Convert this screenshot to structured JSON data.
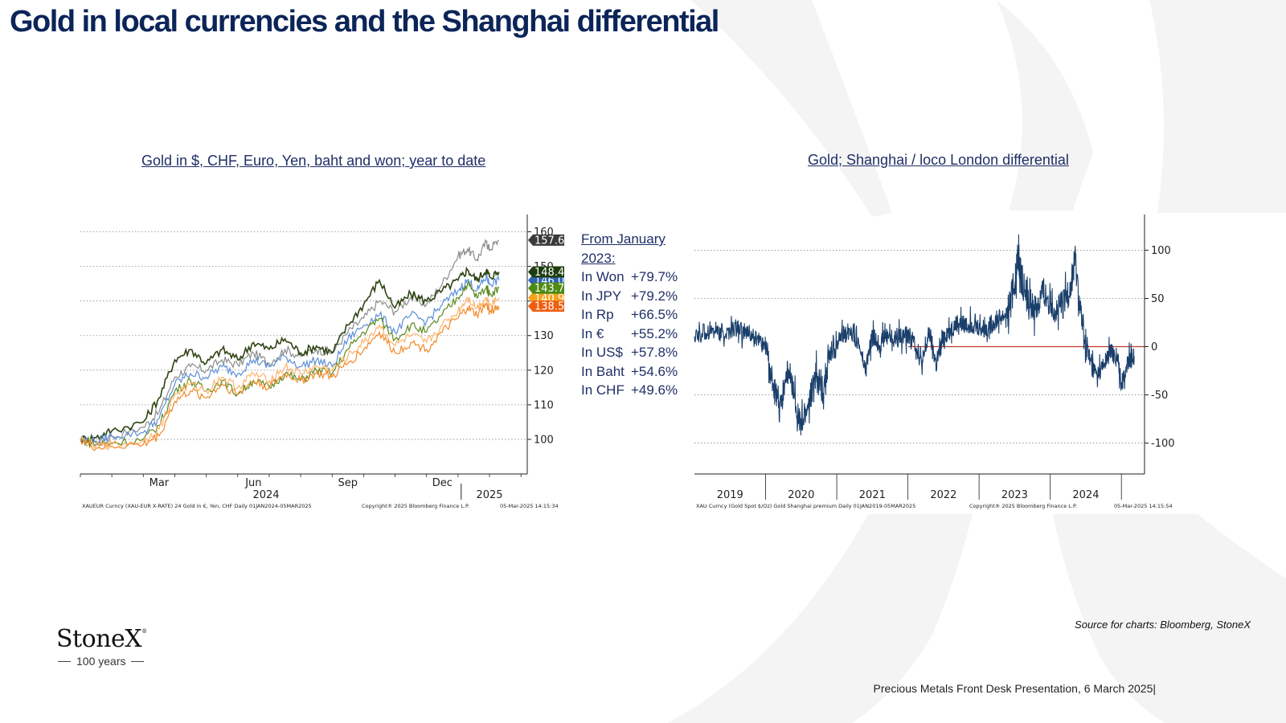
{
  "page": {
    "title": "Gold in local currencies and the Shanghai differential",
    "source": "Source for charts: Bloomberg, StoneX",
    "footer": "Precious Metals Front Desk Presentation, 6 March 2025|",
    "logo": {
      "name": "StoneX",
      "mark": "®",
      "tagline": "100 years"
    },
    "colors": {
      "navy": "#0b2559",
      "series_blue": "#1a3f6b"
    }
  },
  "performance": {
    "heading": "From January 2023:",
    "rows": [
      {
        "label": "In Won",
        "value": "+79.7%"
      },
      {
        "label": "In JPY",
        "value": "+79.2%"
      },
      {
        "label": "In Rp",
        "value": "+66.5%"
      },
      {
        "label": "In €",
        "value": "+55.2%"
      },
      {
        "label": "In US$",
        "value": "+57.8%"
      },
      {
        "label": "In Baht",
        "value": "+54.6%"
      },
      {
        "label": "In CHF",
        "value": "+49.6%"
      }
    ]
  },
  "chart_data": [
    {
      "type": "line",
      "title": "Gold in $, CHF, Euro, Yen, baht and won; year to date",
      "x_ticks": [
        "Mar",
        "Jun",
        "Sep",
        "Dec"
      ],
      "x_years": [
        "2024",
        "2025"
      ],
      "ylim": [
        90,
        165
      ],
      "y_ticks": [
        100,
        110,
        120,
        130,
        140,
        150,
        160
      ],
      "grid": true,
      "footnote_left": "XAUEUR Curncy (XAU-EUR X-RATE) 24 Gold in €, Yen, CHF  Daily 01JAN2024-05MAR2025",
      "footnote_mid": "Copyright® 2025 Bloomberg Finance L.P.",
      "footnote_right": "05-Mar-2025 14:15:34",
      "series": [
        {
          "color": "#8c8c8c",
          "last_label": "157.6",
          "last_value": 157.6,
          "label_color": "#3a3a3a",
          "points": [
            [
              0,
              100
            ],
            [
              0.5,
              99
            ],
            [
              1,
              100.8
            ],
            [
              2,
              103.5
            ],
            [
              2.5,
              108
            ],
            [
              3,
              118
            ],
            [
              3.5,
              121
            ],
            [
              4,
              120
            ],
            [
              4.5,
              123
            ],
            [
              5,
              121.5
            ],
            [
              5.5,
              125
            ],
            [
              6,
              122
            ],
            [
              6.5,
              126
            ],
            [
              7,
              124
            ],
            [
              7.5,
              126
            ],
            [
              8,
              125
            ],
            [
              8.5,
              131
            ],
            [
              9,
              135
            ],
            [
              9.5,
              140
            ],
            [
              10,
              137
            ],
            [
              10.5,
              141
            ],
            [
              11,
              139
            ],
            [
              11.5,
              145
            ],
            [
              12,
              153
            ],
            [
              12.3,
              155
            ],
            [
              12.6,
              152
            ],
            [
              12.9,
              157
            ],
            [
              13.0,
              155
            ],
            [
              13.3,
              157.6
            ]
          ]
        },
        {
          "color": "#2e4413",
          "last_label": "148.4",
          "last_value": 148.4,
          "label_color": "#1f3d10",
          "points": [
            [
              0,
              100
            ],
            [
              0.5,
              100.5
            ],
            [
              1,
              102.5
            ],
            [
              2,
              105
            ],
            [
              2.5,
              112
            ],
            [
              3,
              123
            ],
            [
              3.5,
              126
            ],
            [
              4,
              122
            ],
            [
              4.5,
              126
            ],
            [
              5,
              123
            ],
            [
              5.5,
              128
            ],
            [
              6,
              126
            ],
            [
              6.5,
              129
            ],
            [
              7,
              125
            ],
            [
              7.5,
              127
            ],
            [
              8,
              125
            ],
            [
              8.5,
              133
            ],
            [
              9,
              139
            ],
            [
              9.5,
              146
            ],
            [
              10,
              138
            ],
            [
              10.5,
              142
            ],
            [
              11,
              140
            ],
            [
              11.5,
              143
            ],
            [
              12,
              146
            ],
            [
              12.3,
              149
            ],
            [
              12.6,
              146
            ],
            [
              12.9,
              149
            ],
            [
              13.0,
              147
            ],
            [
              13.3,
              148.4
            ]
          ]
        },
        {
          "color": "#5b8fd6",
          "last_label": "146.0",
          "last_value": 146.0,
          "label_color": "#2f63b6",
          "points": [
            [
              0,
              100
            ],
            [
              0.5,
              99.5
            ],
            [
              1,
              101
            ],
            [
              2,
              102
            ],
            [
              2.5,
              106
            ],
            [
              3,
              116
            ],
            [
              3.5,
              119
            ],
            [
              4,
              118
            ],
            [
              4.5,
              121
            ],
            [
              5,
              119
            ],
            [
              5.5,
              123
            ],
            [
              6,
              121
            ],
            [
              6.5,
              124
            ],
            [
              7,
              121
            ],
            [
              7.5,
              123
            ],
            [
              8,
              121
            ],
            [
              8.5,
              129
            ],
            [
              9,
              133
            ],
            [
              9.5,
              136
            ],
            [
              10,
              131
            ],
            [
              10.5,
              136
            ],
            [
              11,
              134
            ],
            [
              11.5,
              139
            ],
            [
              12,
              143
            ],
            [
              12.3,
              146
            ],
            [
              12.6,
              143
            ],
            [
              12.9,
              147
            ],
            [
              13.0,
              145
            ],
            [
              13.3,
              146.0
            ]
          ]
        },
        {
          "color": "#5a8a1e",
          "last_label": "143.7",
          "last_value": 143.7,
          "label_color": "#4e8a14",
          "points": [
            [
              0,
              100
            ],
            [
              0.5,
              98.5
            ],
            [
              1,
              99
            ],
            [
              2,
              100
            ],
            [
              2.5,
              104
            ],
            [
              3,
              114
            ],
            [
              3.5,
              117
            ],
            [
              4,
              114
            ],
            [
              4.5,
              117
            ],
            [
              5,
              113
            ],
            [
              5.5,
              117
            ],
            [
              6,
              115
            ],
            [
              6.5,
              119
            ],
            [
              7,
              117
            ],
            [
              7.5,
              120
            ],
            [
              8,
              119
            ],
            [
              8.5,
              126
            ],
            [
              9,
              131
            ],
            [
              9.5,
              135
            ],
            [
              10,
              129
            ],
            [
              10.5,
              133
            ],
            [
              11,
              131
            ],
            [
              11.5,
              136
            ],
            [
              12,
              141
            ],
            [
              12.3,
              145
            ],
            [
              12.6,
              141
            ],
            [
              12.9,
              144
            ],
            [
              13.0,
              142
            ],
            [
              13.3,
              143.7
            ]
          ]
        },
        {
          "color": "#ffb36a",
          "last_label": "140.9",
          "last_value": 140.9,
          "label_color": "#f6a21b",
          "points": [
            [
              0,
              100
            ],
            [
              0.5,
              98
            ],
            [
              1,
              98.5
            ],
            [
              2,
              99.5
            ],
            [
              2.5,
              103
            ],
            [
              3,
              113
            ],
            [
              3.5,
              116
            ],
            [
              4,
              114
            ],
            [
              4.5,
              118
            ],
            [
              5,
              115
            ],
            [
              5.5,
              119
            ],
            [
              6,
              117
            ],
            [
              6.5,
              121
            ],
            [
              7,
              119
            ],
            [
              7.5,
              121
            ],
            [
              8,
              120
            ],
            [
              8.5,
              124
            ],
            [
              9,
              128
            ],
            [
              9.5,
              133
            ],
            [
              10,
              127
            ],
            [
              10.5,
              130
            ],
            [
              11,
              128
            ],
            [
              11.5,
              133
            ],
            [
              12,
              137
            ],
            [
              12.3,
              141
            ],
            [
              12.6,
              138
            ],
            [
              12.9,
              141
            ],
            [
              13.0,
              139
            ],
            [
              13.3,
              140.9
            ]
          ]
        },
        {
          "color": "#f28a2a",
          "last_label": "138.5",
          "last_value": 138.5,
          "label_color": "#ef5f10",
          "points": [
            [
              0,
              100
            ],
            [
              0.5,
              97.5
            ],
            [
              1,
              98
            ],
            [
              2,
              98.5
            ],
            [
              2.5,
              101
            ],
            [
              3,
              111
            ],
            [
              3.5,
              114
            ],
            [
              4,
              112
            ],
            [
              4.5,
              116
            ],
            [
              5,
              113
            ],
            [
              5.5,
              117
            ],
            [
              6,
              115
            ],
            [
              6.5,
              119
            ],
            [
              7,
              117
            ],
            [
              7.5,
              119
            ],
            [
              8,
              118
            ],
            [
              8.5,
              122
            ],
            [
              9,
              126
            ],
            [
              9.5,
              131
            ],
            [
              10,
              125
            ],
            [
              10.5,
              128
            ],
            [
              11,
              126
            ],
            [
              11.5,
              131
            ],
            [
              12,
              135
            ],
            [
              12.3,
              138
            ],
            [
              12.6,
              136
            ],
            [
              12.9,
              139
            ],
            [
              13.0,
              137
            ],
            [
              13.3,
              138.5
            ]
          ]
        }
      ]
    },
    {
      "type": "line",
      "title": "Gold; Shanghai / loco London differential",
      "x_years": [
        "2019",
        "2020",
        "2021",
        "2022",
        "2023",
        "2024"
      ],
      "ylim": [
        -132,
        137
      ],
      "y_ticks": [
        100,
        50,
        0,
        -50,
        -100
      ],
      "grid": true,
      "zero_line_color": "#c0392b",
      "footnote_left": "XAU Curncy (Gold Spot  $/Oz) Gold Shanghai premium  Daily 01JAN2019-05MAR2025",
      "footnote_mid": "Copyright® 2025 Bloomberg Finance L.P.",
      "footnote_right": "05-Mar-2025 14:15:54",
      "series": [
        {
          "color": "#1a3f6b",
          "points": [
            [
              2019.0,
              10
            ],
            [
              2019.15,
              15
            ],
            [
              2019.3,
              18
            ],
            [
              2019.45,
              12
            ],
            [
              2019.6,
              20
            ],
            [
              2019.75,
              12
            ],
            [
              2019.9,
              8
            ],
            [
              2020.0,
              0
            ],
            [
              2020.1,
              -40
            ],
            [
              2020.2,
              -65
            ],
            [
              2020.3,
              -25
            ],
            [
              2020.4,
              -50
            ],
            [
              2020.5,
              -85
            ],
            [
              2020.6,
              -60
            ],
            [
              2020.7,
              -30
            ],
            [
              2020.8,
              -45
            ],
            [
              2020.9,
              -10
            ],
            [
              2021.0,
              5
            ],
            [
              2021.1,
              12
            ],
            [
              2021.2,
              18
            ],
            [
              2021.3,
              5
            ],
            [
              2021.4,
              -25
            ],
            [
              2021.5,
              10
            ],
            [
              2021.6,
              2
            ],
            [
              2021.7,
              12
            ],
            [
              2021.8,
              8
            ],
            [
              2021.9,
              10
            ],
            [
              2022.0,
              12
            ],
            [
              2022.1,
              5
            ],
            [
              2022.2,
              -20
            ],
            [
              2022.3,
              15
            ],
            [
              2022.4,
              -20
            ],
            [
              2022.5,
              10
            ],
            [
              2022.6,
              18
            ],
            [
              2022.7,
              25
            ],
            [
              2022.8,
              22
            ],
            [
              2022.9,
              25
            ],
            [
              2023.0,
              20
            ],
            [
              2023.1,
              18
            ],
            [
              2023.2,
              25
            ],
            [
              2023.3,
              30
            ],
            [
              2023.4,
              35
            ],
            [
              2023.5,
              65
            ],
            [
              2023.55,
              95
            ],
            [
              2023.6,
              70
            ],
            [
              2023.7,
              45
            ],
            [
              2023.8,
              40
            ],
            [
              2023.9,
              55
            ],
            [
              2024.0,
              50
            ],
            [
              2024.1,
              35
            ],
            [
              2024.2,
              45
            ],
            [
              2024.3,
              65
            ],
            [
              2024.35,
              90
            ],
            [
              2024.45,
              20
            ],
            [
              2024.55,
              -15
            ],
            [
              2024.65,
              -30
            ],
            [
              2024.75,
              -20
            ],
            [
              2024.85,
              -5
            ],
            [
              2024.95,
              -15
            ],
            [
              2025.0,
              -40
            ],
            [
              2025.1,
              -15
            ],
            [
              2025.18,
              -10
            ]
          ]
        }
      ]
    }
  ]
}
